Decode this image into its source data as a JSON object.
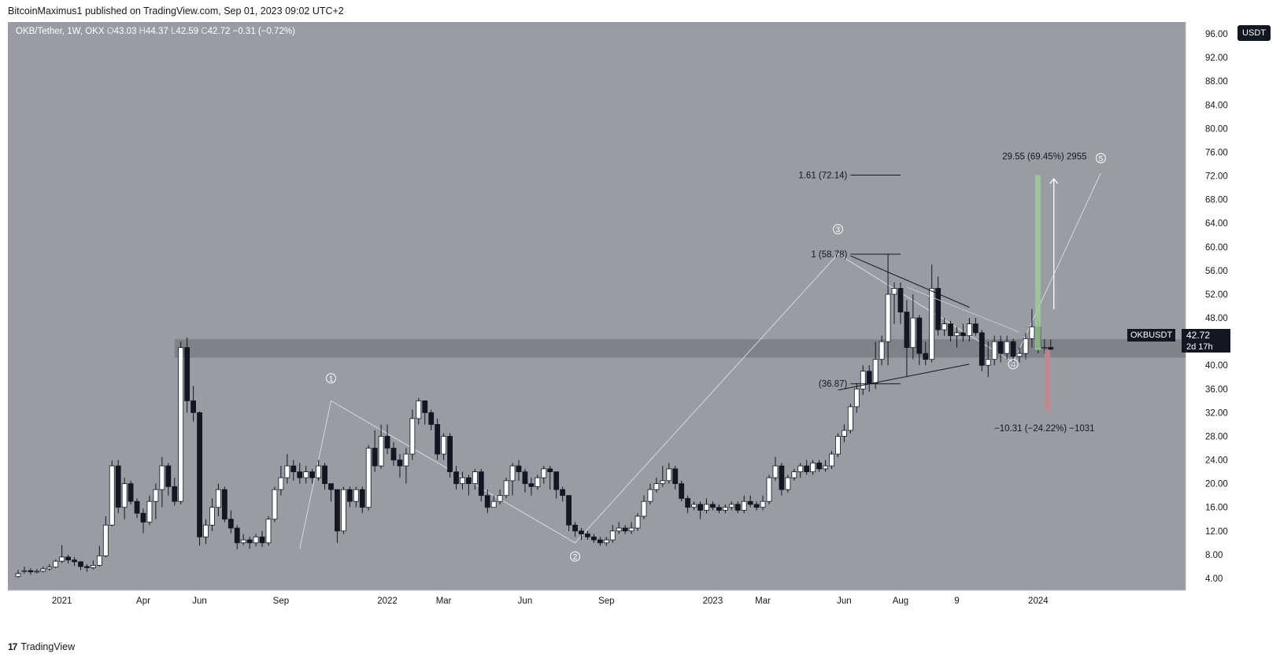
{
  "header": {
    "published_text": "BitcoinMaximus1 published on TradingView.com, Sep 01, 2023 09:02 UTC+2"
  },
  "legend": {
    "pair": "OKB/Tether, 1W, OKX",
    "o_label": "O",
    "o_value": "43.03",
    "h_label": "H",
    "h_value": "44.37",
    "l_label": "L",
    "l_value": "42.59",
    "c_label": "C",
    "c_value": "42.72",
    "change": "−0.31 (−0.72%)"
  },
  "currency_button": "USDT",
  "price_tags": {
    "symbol": "OKBUSDT",
    "price": "42.72",
    "countdown": "2d 17h"
  },
  "footer": {
    "logo": "17",
    "brand": "TradingView"
  },
  "colors": {
    "chart_background": "#999ca3",
    "candle_up": "#ffffff",
    "candle_down": "#131722",
    "support_zone": "#7b7e85",
    "target_green": "#9ccc90",
    "stop_red": "#c9868a"
  },
  "chart_data": {
    "type": "candlestick",
    "symbol": "OKB/Tether",
    "timeframe": "1W",
    "exchange": "OKX",
    "ylim": [
      2,
      98
    ],
    "y_ticks": [
      "4.00",
      "8.00",
      "12.00",
      "16.00",
      "20.00",
      "24.00",
      "28.00",
      "32.00",
      "36.00",
      "40.00",
      "44.00",
      "48.00",
      "52.00",
      "56.00",
      "60.00",
      "64.00",
      "68.00",
      "72.00",
      "76.00",
      "80.00",
      "84.00",
      "88.00",
      "92.00",
      "96.00"
    ],
    "x_ticks": [
      {
        "label": "2021",
        "week": 7
      },
      {
        "label": "Apr",
        "week": 20
      },
      {
        "label": "Jun",
        "week": 29
      },
      {
        "label": "Sep",
        "week": 42
      },
      {
        "label": "2022",
        "week": 59
      },
      {
        "label": "Mar",
        "week": 68
      },
      {
        "label": "Jun",
        "week": 81
      },
      {
        "label": "Sep",
        "week": 94
      },
      {
        "label": "2023",
        "week": 111
      },
      {
        "label": "Mar",
        "week": 119
      },
      {
        "label": "Jun",
        "week": 132
      },
      {
        "label": "Aug",
        "week": 141
      },
      {
        "label": "9",
        "week": 150
      },
      {
        "label": "2024",
        "week": 163
      }
    ],
    "candles": [
      [
        4.3,
        4.8,
        4.1,
        5.4
      ],
      [
        5.2,
        5.3,
        4.8,
        6.0
      ],
      [
        5.3,
        5.1,
        4.6,
        5.7
      ],
      [
        5.1,
        5.2,
        4.8,
        5.6
      ],
      [
        5.2,
        5.6,
        5.0,
        6.0
      ],
      [
        5.6,
        5.9,
        5.3,
        6.4
      ],
      [
        5.9,
        6.9,
        5.7,
        7.2
      ],
      [
        6.9,
        7.6,
        6.6,
        9.6
      ],
      [
        7.6,
        7.1,
        6.5,
        8.0
      ],
      [
        7.1,
        6.8,
        6.1,
        7.6
      ],
      [
        6.8,
        6.0,
        5.4,
        6.9
      ],
      [
        6.0,
        5.8,
        5.1,
        6.4
      ],
      [
        5.8,
        6.2,
        5.5,
        7.0
      ],
      [
        6.2,
        7.8,
        6.0,
        9.5
      ],
      [
        7.8,
        13.0,
        7.6,
        14.5
      ],
      [
        13.0,
        23.0,
        12.8,
        23.9
      ],
      [
        23.0,
        16.0,
        15.0,
        24.0
      ],
      [
        16.0,
        20.0,
        14.0,
        21.0
      ],
      [
        20.0,
        17.0,
        16.5,
        20.5
      ],
      [
        17.0,
        15.0,
        14.2,
        17.5
      ],
      [
        15.0,
        13.5,
        11.6,
        15.8
      ],
      [
        13.5,
        17.0,
        13.0,
        18.0
      ],
      [
        17.0,
        19.0,
        14.0,
        20.0
      ],
      [
        19.0,
        23.0,
        16.0,
        24.5
      ],
      [
        23.0,
        19.5,
        18.0,
        23.5
      ],
      [
        19.5,
        17.0,
        16.3,
        21.0
      ],
      [
        17.0,
        43.0,
        16.5,
        44.0
      ],
      [
        43.0,
        34.0,
        32.0,
        44.7
      ],
      [
        34.0,
        32.0,
        30.5,
        36.5
      ],
      [
        32.0,
        11.0,
        9.5,
        32.2
      ],
      [
        11.0,
        13.0,
        9.8,
        14.0
      ],
      [
        13.0,
        16.0,
        12.0,
        17.5
      ],
      [
        16.0,
        19.0,
        14.5,
        20.0
      ],
      [
        19.0,
        14.0,
        13.5,
        19.5
      ],
      [
        14.0,
        12.5,
        11.6,
        15.5
      ],
      [
        12.5,
        10.0,
        8.9,
        13.0
      ],
      [
        10.0,
        10.5,
        9.6,
        11.5
      ],
      [
        10.5,
        10.0,
        9.0,
        11.0
      ],
      [
        10.0,
        11.0,
        9.4,
        11.5
      ],
      [
        11.0,
        10.0,
        9.3,
        12.0
      ],
      [
        10.0,
        14.0,
        9.5,
        14.5
      ],
      [
        14.0,
        19.0,
        13.5,
        19.5
      ],
      [
        19.0,
        21.0,
        18.0,
        23.0
      ],
      [
        21.0,
        23.0,
        20.0,
        25.0
      ],
      [
        23.0,
        22.0,
        20.5,
        24.0
      ],
      [
        22.0,
        21.0,
        20.0,
        23.5
      ],
      [
        21.0,
        22.0,
        20.0,
        23.0
      ],
      [
        22.0,
        21.0,
        20.0,
        22.5
      ],
      [
        21.0,
        23.0,
        20.5,
        24.0
      ],
      [
        23.0,
        20.0,
        19.0,
        23.5
      ],
      [
        20.0,
        19.0,
        17.0,
        20.0
      ],
      [
        19.0,
        12.0,
        10.0,
        19.0
      ],
      [
        12.0,
        19.0,
        11.5,
        19.5
      ],
      [
        19.0,
        17.0,
        16.0,
        19.5
      ],
      [
        17.0,
        19.0,
        16.0,
        19.5
      ],
      [
        19.0,
        16.0,
        15.0,
        19.5
      ],
      [
        16.0,
        26.0,
        15.5,
        26.5
      ],
      [
        26.0,
        23.0,
        22.0,
        29.0
      ],
      [
        23.0,
        28.0,
        22.5,
        30.0
      ],
      [
        28.0,
        26.0,
        25.0,
        30.0
      ],
      [
        26.0,
        24.0,
        23.0,
        27.0
      ],
      [
        24.0,
        23.0,
        21.0,
        25.0
      ],
      [
        23.0,
        25.0,
        20.0,
        26.0
      ],
      [
        25.0,
        31.0,
        24.0,
        32.5
      ],
      [
        31.0,
        34.0,
        30.0,
        34.5
      ],
      [
        34.0,
        32.0,
        30.0,
        34.0
      ],
      [
        32.0,
        30.0,
        29.0,
        32.5
      ],
      [
        30.0,
        25.0,
        24.0,
        31.0
      ],
      [
        25.0,
        28.0,
        24.0,
        28.5
      ],
      [
        28.0,
        22.0,
        21.0,
        28.5
      ],
      [
        22.0,
        20.0,
        19.0,
        23.0
      ],
      [
        20.0,
        21.0,
        19.0,
        22.0
      ],
      [
        21.0,
        20.0,
        18.0,
        21.5
      ],
      [
        20.0,
        22.0,
        19.0,
        22.5
      ],
      [
        22.0,
        18.0,
        17.0,
        22.5
      ],
      [
        18.0,
        16.0,
        15.0,
        19.0
      ],
      [
        16.0,
        17.0,
        16.0,
        18.0
      ],
      [
        17.0,
        18.0,
        16.5,
        19.0
      ],
      [
        18.0,
        20.5,
        17.5,
        21.0
      ],
      [
        20.5,
        23.0,
        18.0,
        23.5
      ],
      [
        23.0,
        22.0,
        20.5,
        24.0
      ],
      [
        22.0,
        20.0,
        18.5,
        22.5
      ],
      [
        20.0,
        19.5,
        18.0,
        21.0
      ],
      [
        19.5,
        21.0,
        19.0,
        21.5
      ],
      [
        21.0,
        22.5,
        20.0,
        23.0
      ],
      [
        22.5,
        22.0,
        19.0,
        23.0
      ],
      [
        22.0,
        19.0,
        17.5,
        22.0
      ],
      [
        19.0,
        18.0,
        17.0,
        19.5
      ],
      [
        18.0,
        13.0,
        12.0,
        18.0
      ],
      [
        13.0,
        12.0,
        11.0,
        13.5
      ],
      [
        12.0,
        11.5,
        10.5,
        12.5
      ],
      [
        11.5,
        11.0,
        10.5,
        12.0
      ],
      [
        11.0,
        10.5,
        10.0,
        11.5
      ],
      [
        10.5,
        10.0,
        9.5,
        11.0
      ],
      [
        10.0,
        10.5,
        9.5,
        11.0
      ],
      [
        10.5,
        12.0,
        10.0,
        13.0
      ],
      [
        12.0,
        12.5,
        11.5,
        13.5
      ],
      [
        12.5,
        12.0,
        11.5,
        13.0
      ],
      [
        12.0,
        12.5,
        11.5,
        13.5
      ],
      [
        12.5,
        14.5,
        12.0,
        15.0
      ],
      [
        14.5,
        17.0,
        14.0,
        18.0
      ],
      [
        17.0,
        19.0,
        16.5,
        20.0
      ],
      [
        19.0,
        20.0,
        18.5,
        21.0
      ],
      [
        20.0,
        20.5,
        19.5,
        23.0
      ],
      [
        20.5,
        22.5,
        20.0,
        23.5
      ],
      [
        22.5,
        20.0,
        19.0,
        23.0
      ],
      [
        20.0,
        17.5,
        17.0,
        20.5
      ],
      [
        17.5,
        16.0,
        15.0,
        18.0
      ],
      [
        16.0,
        16.5,
        15.5,
        17.0
      ],
      [
        16.5,
        15.5,
        14.0,
        17.0
      ],
      [
        15.5,
        16.5,
        15.0,
        17.5
      ],
      [
        16.5,
        16.0,
        15.5,
        17.0
      ],
      [
        16.0,
        15.5,
        15.0,
        16.5
      ],
      [
        15.5,
        16.0,
        15.0,
        16.5
      ],
      [
        16.0,
        16.5,
        15.5,
        17.0
      ],
      [
        16.5,
        15.5,
        15.0,
        17.0
      ],
      [
        15.5,
        17.0,
        15.0,
        18.0
      ],
      [
        17.0,
        16.5,
        16.0,
        18.0
      ],
      [
        16.5,
        16.0,
        15.5,
        17.0
      ],
      [
        16.0,
        17.0,
        15.5,
        18.0
      ],
      [
        17.0,
        21.0,
        16.5,
        21.5
      ],
      [
        21.0,
        23.0,
        20.5,
        24.5
      ],
      [
        23.0,
        19.0,
        18.0,
        23.5
      ],
      [
        19.0,
        21.0,
        18.5,
        21.5
      ],
      [
        21.0,
        22.0,
        20.5,
        22.5
      ],
      [
        22.0,
        23.0,
        21.0,
        23.5
      ],
      [
        23.0,
        22.0,
        21.5,
        24.0
      ],
      [
        22.0,
        23.5,
        21.5,
        24.0
      ],
      [
        23.5,
        22.5,
        22.0,
        24.0
      ],
      [
        22.5,
        23.0,
        22.0,
        24.0
      ],
      [
        23.0,
        25.0,
        22.5,
        25.5
      ],
      [
        25.0,
        28.0,
        24.5,
        28.5
      ],
      [
        28.0,
        29.0,
        27.0,
        30.0
      ],
      [
        29.0,
        33.0,
        28.5,
        33.5
      ],
      [
        33.0,
        36.0,
        32.0,
        37.0
      ],
      [
        36.0,
        39.0,
        35.0,
        40.0
      ],
      [
        39.0,
        37.0,
        35.5,
        40.0
      ],
      [
        37.0,
        41.0,
        36.0,
        44.0
      ],
      [
        41.0,
        44.0,
        40.0,
        45.0
      ],
      [
        44.0,
        52.0,
        40.0,
        58.8
      ],
      [
        52.0,
        53.0,
        47.0,
        54.0
      ],
      [
        53.0,
        49.0,
        47.0,
        54.0
      ],
      [
        49.0,
        43.0,
        38.0,
        51.0
      ],
      [
        43.0,
        48.0,
        41.0,
        52.0
      ],
      [
        48.0,
        42.0,
        40.0,
        48.5
      ],
      [
        42.0,
        41.0,
        40.0,
        44.0
      ],
      [
        41.0,
        53.0,
        40.5,
        57.0
      ],
      [
        53.0,
        46.0,
        45.0,
        55.0
      ],
      [
        46.0,
        47.0,
        45.0,
        48.0
      ],
      [
        47.0,
        45.0,
        44.0,
        47.5
      ],
      [
        45.0,
        45.5,
        43.0,
        46.5
      ],
      [
        45.5,
        45.0,
        44.0,
        47.0
      ],
      [
        45.0,
        47.0,
        44.0,
        48.0
      ],
      [
        47.0,
        45.5,
        45.0,
        48.0
      ],
      [
        45.5,
        40.0,
        39.0,
        46.0
      ],
      [
        40.0,
        41.0,
        38.0,
        44.0
      ],
      [
        41.0,
        44.0,
        40.0,
        45.0
      ],
      [
        44.0,
        42.0,
        40.5,
        45.0
      ],
      [
        42.0,
        44.0,
        41.0,
        45.0
      ],
      [
        44.0,
        41.5,
        40.0,
        44.5
      ],
      [
        41.5,
        42.0,
        40.5,
        43.0
      ],
      [
        42.0,
        44.5,
        41.0,
        45.5
      ],
      [
        44.5,
        46.5,
        43.0,
        49.5
      ],
      [
        46.5,
        43.0,
        42.0,
        47.5
      ],
      [
        43.0,
        43.0,
        42.0,
        44.4
      ],
      [
        43.03,
        42.72,
        42.59,
        44.37
      ]
    ],
    "support_zone": [
      41.3,
      44.4
    ],
    "wave_labels": [
      {
        "label": "1",
        "week": 50,
        "price": 37.8
      },
      {
        "label": "2",
        "week": 89,
        "price": 7.7
      },
      {
        "label": "3",
        "week": 131,
        "price": 63.0
      },
      {
        "label": "4",
        "week": 159,
        "price": 40.2
      },
      {
        "label": "5",
        "week": 173,
        "price": 75.0
      }
    ],
    "fib_levels": [
      {
        "label": "1.61 (72.14)",
        "price": 72.14
      },
      {
        "label": "1 (58.78)",
        "price": 58.78
      },
      {
        "label": "(36.87)",
        "price": 36.87
      }
    ],
    "target_measure": {
      "label": "29.55 (69.45%) 2955",
      "from": 42.6,
      "to": 72.14
    },
    "stop_measure": {
      "label": "−10.31 (−24.22%) −1031",
      "from": 42.6,
      "to": 32.3
    }
  }
}
